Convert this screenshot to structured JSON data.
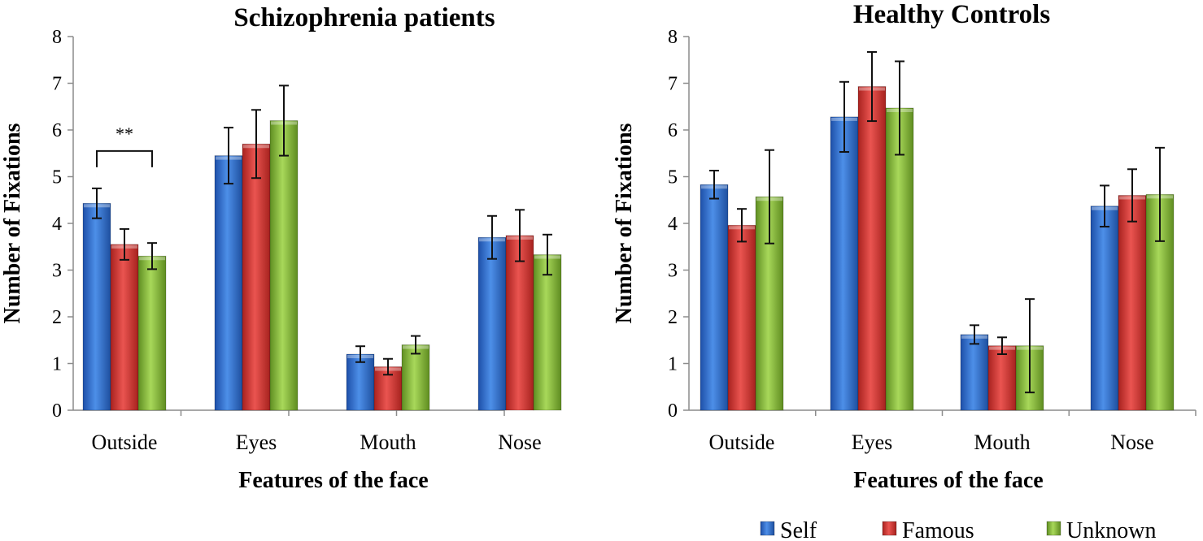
{
  "colors": {
    "Self": "#2f6fd0",
    "Famous": "#d63a36",
    "Unknown": "#8fc23f",
    "axis": "#8c8c8c",
    "errorbar": "#111111"
  },
  "legend": {
    "items": [
      "Self",
      "Famous",
      "Unknown"
    ],
    "placement": "bottom-right"
  },
  "chart_data": [
    {
      "type": "bar",
      "title": "Schizophrenia patients",
      "xlabel": "Features of the face",
      "ylabel": "Number of Fixations",
      "ylim": [
        0,
        8
      ],
      "yticks": [
        "0",
        "1",
        "2",
        "3",
        "4",
        "5",
        "6",
        "7",
        "8"
      ],
      "grid": false,
      "categories": [
        "Outside",
        "Eyes",
        "Mouth",
        "Nose"
      ],
      "series": [
        {
          "name": "Self",
          "values": [
            4.43,
            5.45,
            1.2,
            3.7
          ],
          "errors": [
            0.32,
            0.6,
            0.17,
            0.46
          ]
        },
        {
          "name": "Famous",
          "values": [
            3.55,
            5.7,
            0.93,
            3.74
          ],
          "errors": [
            0.33,
            0.73,
            0.17,
            0.55
          ]
        },
        {
          "name": "Unknown",
          "values": [
            3.3,
            6.2,
            1.4,
            3.33
          ],
          "errors": [
            0.28,
            0.75,
            0.19,
            0.43
          ]
        }
      ],
      "annotation": {
        "text": "**",
        "from": "Self",
        "to": "Unknown",
        "category": "Outside",
        "bracket_y": 5.55
      }
    },
    {
      "type": "bar",
      "title": "Healthy Controls",
      "xlabel": "Features of the face",
      "ylabel": "Number of Fixations",
      "ylim": [
        0,
        8
      ],
      "yticks": [
        "0",
        "1",
        "2",
        "3",
        "4",
        "5",
        "6",
        "7",
        "8"
      ],
      "grid": false,
      "categories": [
        "Outside",
        "Eyes",
        "Mouth",
        "Nose"
      ],
      "series": [
        {
          "name": "Self",
          "values": [
            4.83,
            6.28,
            1.62,
            4.37
          ],
          "errors": [
            0.3,
            0.75,
            0.2,
            0.44
          ]
        },
        {
          "name": "Famous",
          "values": [
            3.96,
            6.93,
            1.38,
            4.6
          ],
          "errors": [
            0.35,
            0.74,
            0.18,
            0.56
          ]
        },
        {
          "name": "Unknown",
          "values": [
            4.57,
            6.47,
            1.38,
            4.62
          ],
          "errors": [
            1.0,
            1.0,
            1.0,
            1.0
          ]
        }
      ]
    }
  ]
}
